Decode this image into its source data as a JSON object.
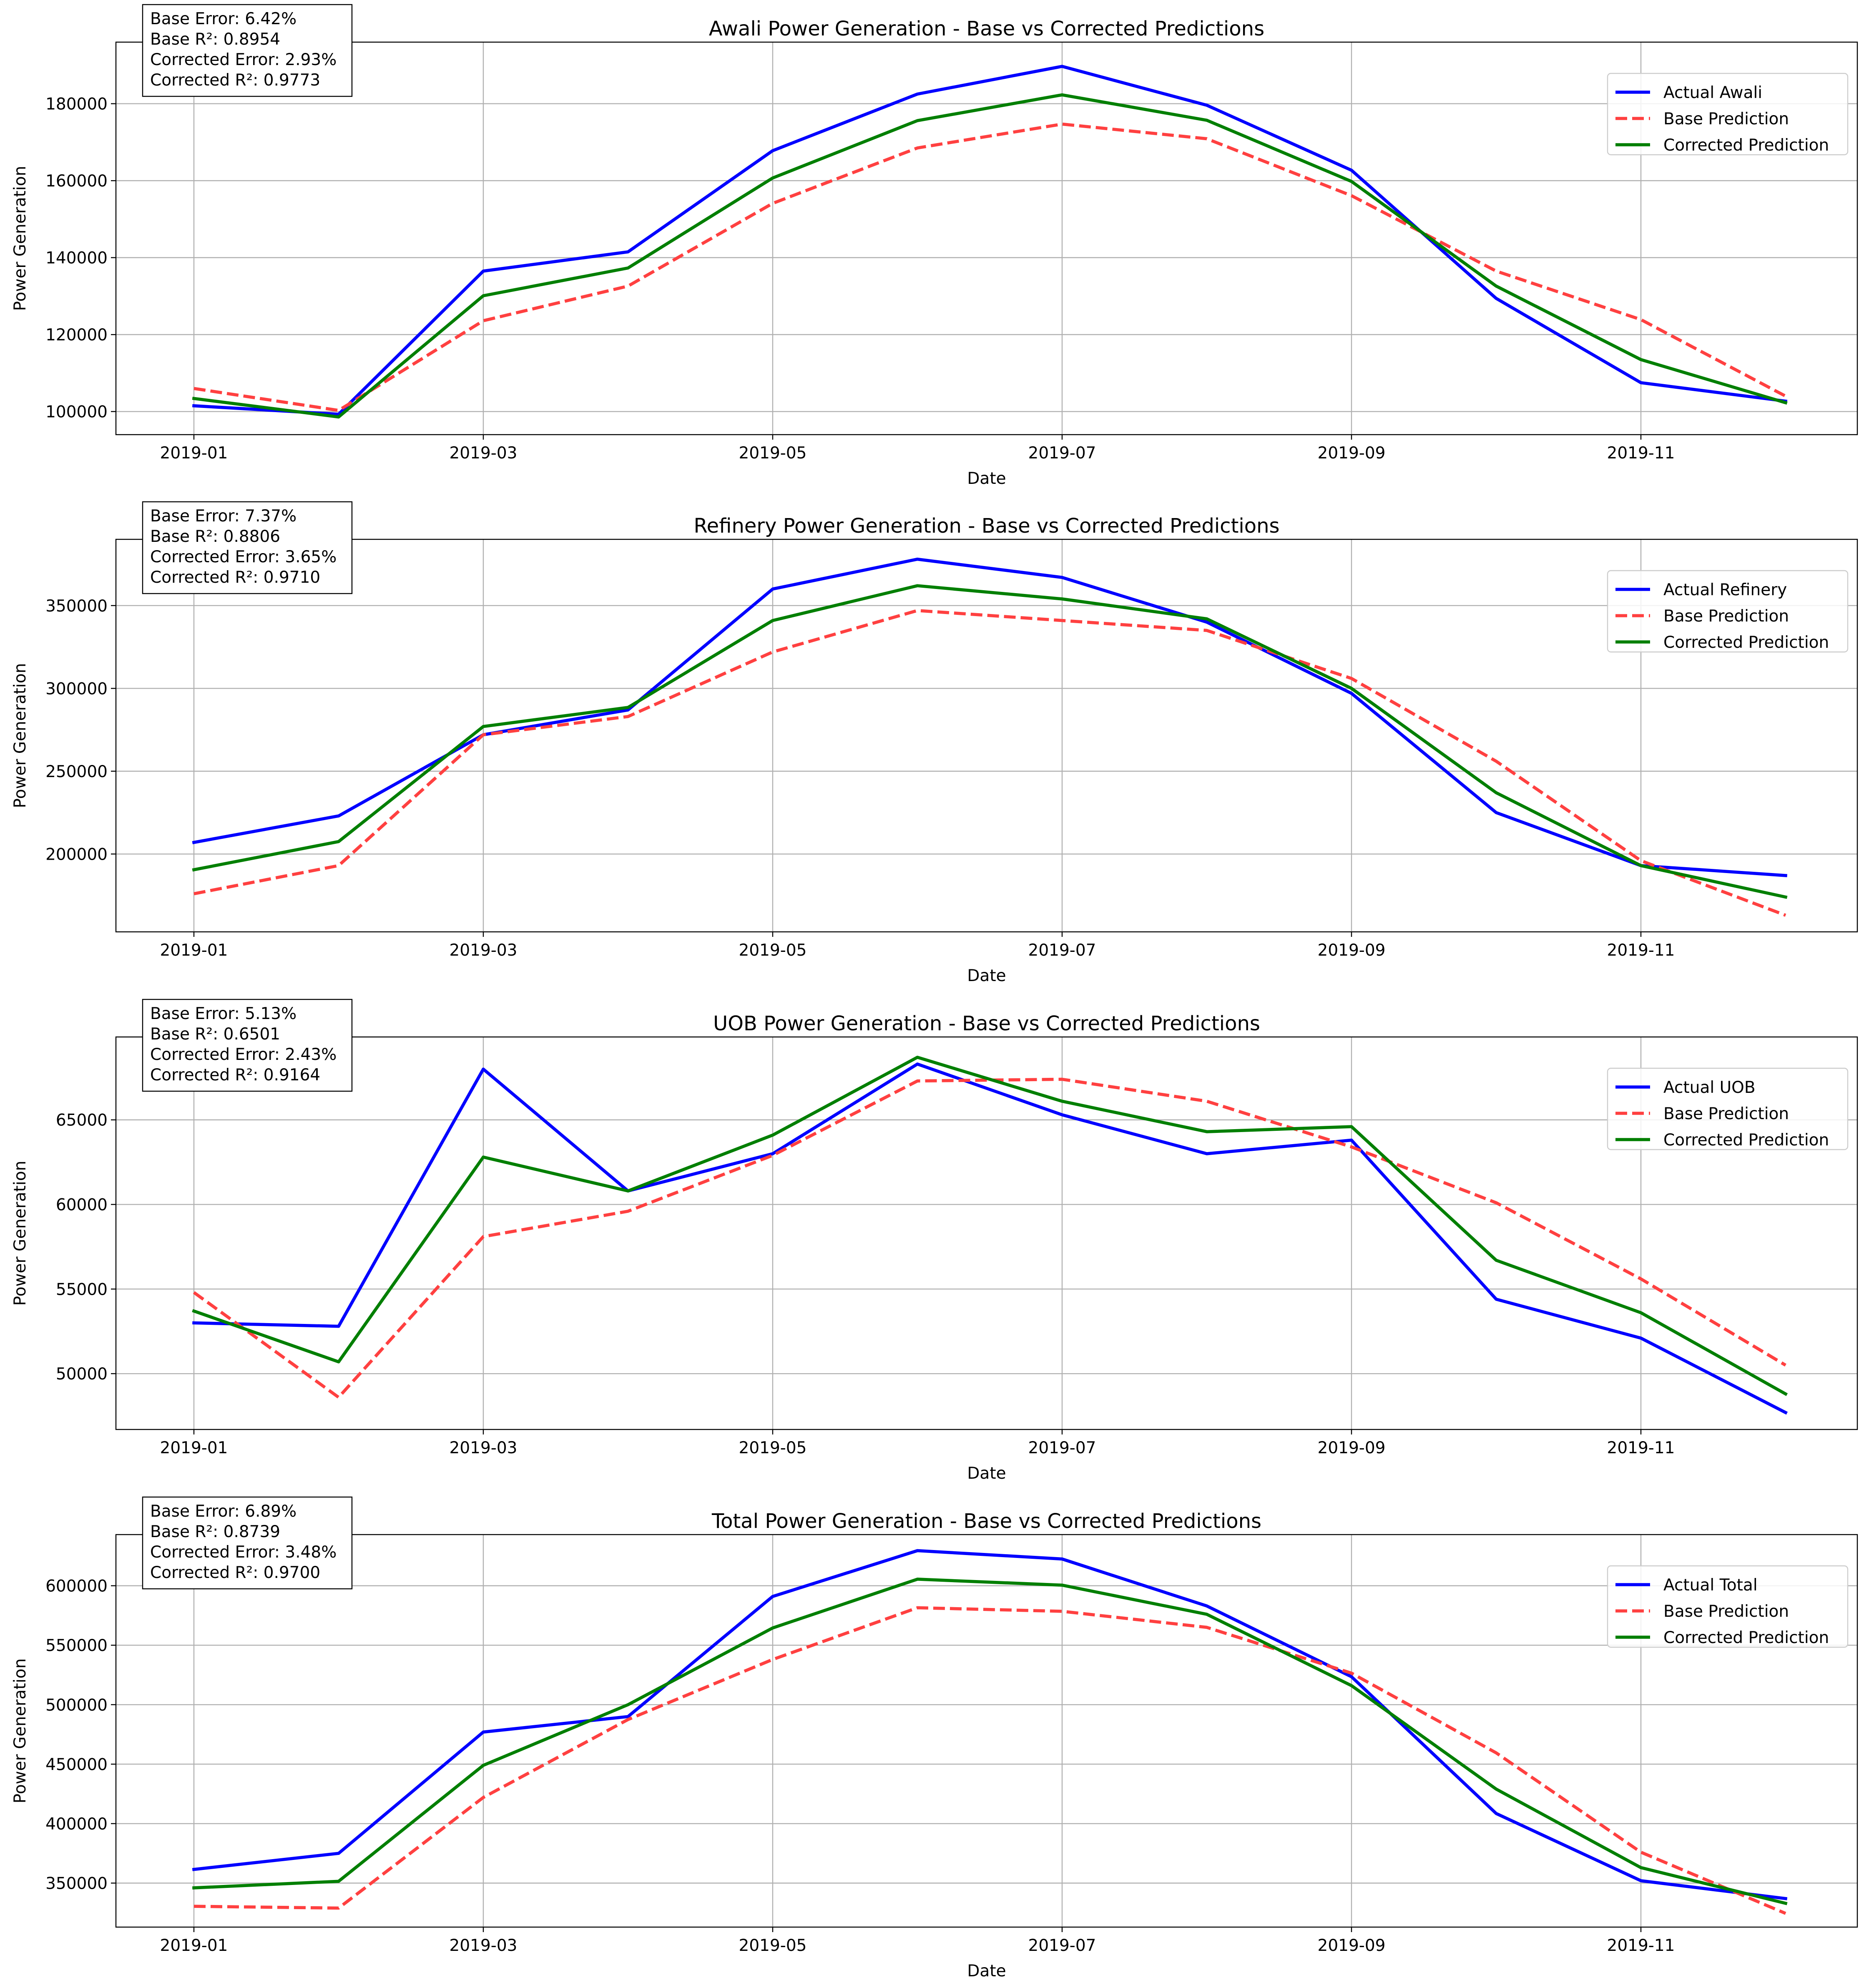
{
  "colors": {
    "actual": "#0000ff",
    "base": "#ff4040",
    "corrected": "#007f00",
    "grid": "#b0b0b0",
    "axes": "#000000",
    "background": "#ffffff"
  },
  "xlabel": "Date",
  "ylabel": "Power Generation",
  "chart_data": [
    {
      "type": "line",
      "title": "Awali Power Generation - Base vs Corrected Predictions",
      "xlabel": "Date",
      "ylabel": "Power Generation",
      "x": [
        "2019-01",
        "2019-02",
        "2019-03",
        "2019-04",
        "2019-05",
        "2019-06",
        "2019-07",
        "2019-08",
        "2019-09",
        "2019-10",
        "2019-11",
        "2019-12"
      ],
      "xticks": [
        "2019-01",
        "2019-03",
        "2019-05",
        "2019-07",
        "2019-09",
        "2019-11"
      ],
      "yticks": [
        100000,
        120000,
        140000,
        160000,
        180000
      ],
      "ylim": [
        94000,
        196000
      ],
      "grid": true,
      "legend_location": "upper right",
      "series": [
        {
          "name": "Actual Awali",
          "style": "solid",
          "color": "#0000ff",
          "values": [
            101500,
            99300,
            136500,
            141500,
            167800,
            182500,
            189700,
            179600,
            162700,
            129400,
            107500,
            102700
          ]
        },
        {
          "name": "Base Prediction",
          "style": "dashed",
          "color": "#ff4040",
          "values": [
            106000,
            100300,
            123600,
            132600,
            154100,
            168500,
            174700,
            170900,
            156100,
            136500,
            123900,
            104000
          ]
        },
        {
          "name": "Corrected Prediction",
          "style": "solid",
          "color": "#007f00",
          "values": [
            103400,
            98600,
            130100,
            137300,
            160700,
            175600,
            182300,
            175700,
            159800,
            132600,
            113500,
            102300
          ]
        }
      ],
      "annotation": [
        "Base Error: 6.42%",
        "Base R²: 0.8954",
        "Corrected Error: 2.93%",
        "Corrected R²: 0.9773"
      ]
    },
    {
      "type": "line",
      "title": "Refinery Power Generation - Base vs Corrected Predictions",
      "xlabel": "Date",
      "ylabel": "Power Generation",
      "x": [
        "2019-01",
        "2019-02",
        "2019-03",
        "2019-04",
        "2019-05",
        "2019-06",
        "2019-07",
        "2019-08",
        "2019-09",
        "2019-10",
        "2019-11",
        "2019-12"
      ],
      "xticks": [
        "2019-01",
        "2019-03",
        "2019-05",
        "2019-07",
        "2019-09",
        "2019-11"
      ],
      "yticks": [
        200000,
        250000,
        300000,
        350000
      ],
      "ylim": [
        153000,
        390000
      ],
      "grid": true,
      "legend_location": "upper right",
      "series": [
        {
          "name": "Actual Refinery",
          "style": "solid",
          "color": "#0000ff",
          "values": [
            207000,
            223000,
            272000,
            287000,
            360000,
            378000,
            367000,
            340000,
            297000,
            225000,
            193000,
            187000
          ]
        },
        {
          "name": "Base Prediction",
          "style": "dashed",
          "color": "#ff4040",
          "values": [
            176000,
            193000,
            272000,
            283000,
            322000,
            347000,
            341000,
            335000,
            306000,
            256000,
            196000,
            163000
          ]
        },
        {
          "name": "Corrected Prediction",
          "style": "solid",
          "color": "#007f00",
          "values": [
            190500,
            207500,
            277000,
            288500,
            341000,
            362000,
            354000,
            342000,
            300000,
            237000,
            193000,
            174000
          ]
        }
      ],
      "annotation": [
        "Base Error: 7.37%",
        "Base R²: 0.8806",
        "Corrected Error: 3.65%",
        "Corrected R²: 0.9710"
      ]
    },
    {
      "type": "line",
      "title": "UOB Power Generation - Base vs Corrected Predictions",
      "xlabel": "Date",
      "ylabel": "Power Generation",
      "x": [
        "2019-01",
        "2019-02",
        "2019-03",
        "2019-04",
        "2019-05",
        "2019-06",
        "2019-07",
        "2019-08",
        "2019-09",
        "2019-10",
        "2019-11",
        "2019-12"
      ],
      "xticks": [
        "2019-01",
        "2019-03",
        "2019-05",
        "2019-07",
        "2019-09",
        "2019-11"
      ],
      "yticks": [
        50000,
        55000,
        60000,
        65000
      ],
      "ylim": [
        46700,
        69900
      ],
      "grid": true,
      "legend_location": "upper right",
      "series": [
        {
          "name": "Actual UOB",
          "style": "solid",
          "color": "#0000ff",
          "values": [
            53000,
            52800,
            68000,
            60800,
            63000,
            68300,
            65300,
            63000,
            63800,
            54400,
            52100,
            47700
          ]
        },
        {
          "name": "Base Prediction",
          "style": "dashed",
          "color": "#ff4040",
          "values": [
            54800,
            48600,
            58100,
            59600,
            62900,
            67300,
            67400,
            66100,
            63400,
            60100,
            55600,
            50500
          ]
        },
        {
          "name": "Corrected Prediction",
          "style": "solid",
          "color": "#007f00",
          "values": [
            53700,
            50700,
            62800,
            60800,
            64100,
            68700,
            66100,
            64300,
            64600,
            56700,
            53600,
            48800
          ]
        }
      ],
      "annotation": [
        "Base Error: 5.13%",
        "Base R²: 0.6501",
        "Corrected Error: 2.43%",
        "Corrected R²: 0.9164"
      ]
    },
    {
      "type": "line",
      "title": "Total Power Generation - Base vs Corrected Predictions",
      "xlabel": "Date",
      "ylabel": "Power Generation",
      "x": [
        "2019-01",
        "2019-02",
        "2019-03",
        "2019-04",
        "2019-05",
        "2019-06",
        "2019-07",
        "2019-08",
        "2019-09",
        "2019-10",
        "2019-11",
        "2019-12"
      ],
      "xticks": [
        "2019-01",
        "2019-03",
        "2019-05",
        "2019-07",
        "2019-09",
        "2019-11"
      ],
      "yticks": [
        350000,
        400000,
        450000,
        500000,
        550000,
        600000
      ],
      "ylim": [
        313000,
        643000
      ],
      "grid": true,
      "legend_location": "upper right",
      "series": [
        {
          "name": "Actual Total",
          "style": "solid",
          "color": "#0000ff",
          "values": [
            361500,
            375000,
            477000,
            490000,
            591000,
            629500,
            622500,
            583000,
            523500,
            408500,
            352000,
            337000
          ]
        },
        {
          "name": "Base Prediction",
          "style": "dashed",
          "color": "#ff4040",
          "values": [
            330500,
            329000,
            422000,
            487500,
            538000,
            581500,
            578500,
            565000,
            526500,
            459500,
            376000,
            324500
          ]
        },
        {
          "name": "Corrected Prediction",
          "style": "solid",
          "color": "#007f00",
          "values": [
            346000,
            351500,
            449000,
            500000,
            564500,
            605500,
            600500,
            576000,
            516000,
            429000,
            363000,
            333000
          ]
        }
      ],
      "annotation": [
        "Base Error: 6.89%",
        "Base R²: 0.8739",
        "Corrected Error: 3.48%",
        "Corrected R²: 0.9700"
      ]
    }
  ]
}
